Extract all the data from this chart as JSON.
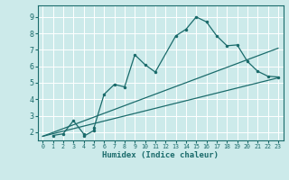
{
  "xlabel": "Humidex (Indice chaleur)",
  "bg_color": "#cceaea",
  "grid_color": "#ffffff",
  "line_color": "#1a6b6b",
  "xlim": [
    -0.5,
    23.5
  ],
  "ylim": [
    1.5,
    9.7
  ],
  "xticks": [
    0,
    1,
    2,
    3,
    4,
    5,
    6,
    7,
    8,
    9,
    10,
    11,
    12,
    13,
    14,
    15,
    16,
    17,
    18,
    19,
    20,
    21,
    22,
    23
  ],
  "yticks": [
    2,
    3,
    4,
    5,
    6,
    7,
    8,
    9
  ],
  "line1_x": [
    1,
    2,
    3,
    4,
    4,
    5,
    5,
    6,
    7,
    8,
    9,
    10,
    11,
    13,
    14,
    15,
    16,
    17,
    18,
    19,
    20,
    21,
    22,
    23
  ],
  "line1_y": [
    1.8,
    1.9,
    2.7,
    1.9,
    1.75,
    2.1,
    2.25,
    4.3,
    4.9,
    4.75,
    6.7,
    6.1,
    5.65,
    7.85,
    8.25,
    9.0,
    8.7,
    7.85,
    7.25,
    7.3,
    6.3,
    5.7,
    5.4,
    5.35
  ],
  "line2_x": [
    0,
    23
  ],
  "line2_y": [
    1.75,
    7.1
  ],
  "line3_x": [
    0,
    23
  ],
  "line3_y": [
    1.75,
    5.3
  ]
}
